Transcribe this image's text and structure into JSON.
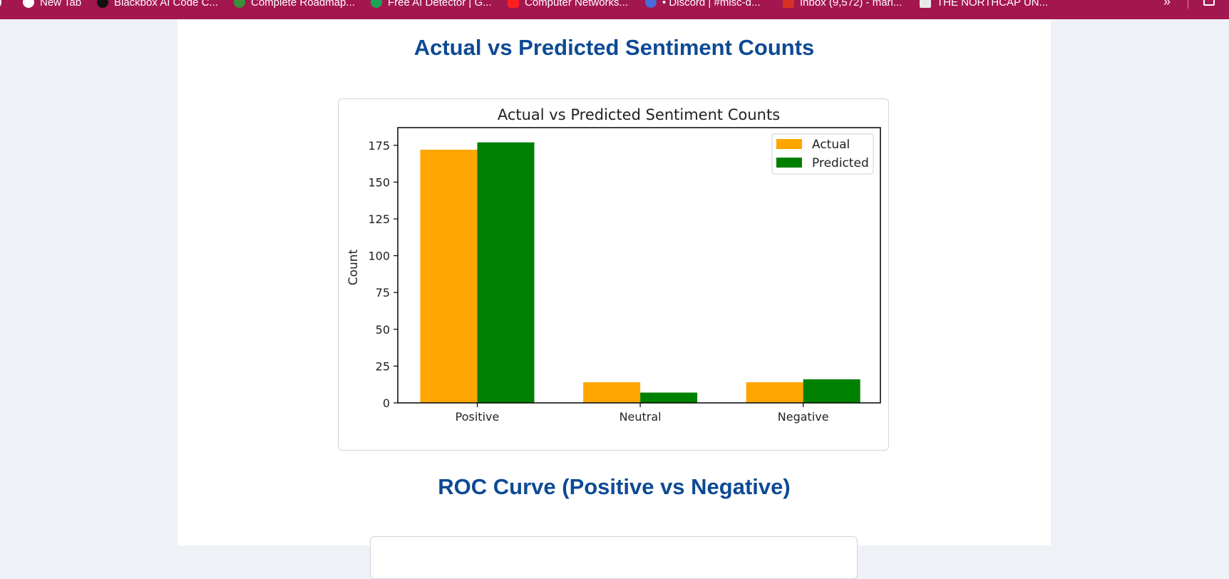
{
  "bookmarks": [
    {
      "label": "New Tab",
      "icon": "globe-icon",
      "color": "#ffffff"
    },
    {
      "label": "Blackbox AI Code C...",
      "icon": "blackbox-icon",
      "color": "#111111"
    },
    {
      "label": "Complete Roadmap...",
      "icon": "roadmap-icon",
      "color": "#3a8f3a"
    },
    {
      "label": "Free AI Detector | G...",
      "icon": "detector-icon",
      "color": "#18a558"
    },
    {
      "label": "Computer Networks...",
      "icon": "youtube-icon",
      "color": "#ff1f1f"
    },
    {
      "label": "• Discord | #misc-d...",
      "icon": "discord-icon",
      "color": "#4a6bd8"
    },
    {
      "label": "Inbox (9,572) - mari...",
      "icon": "gmail-icon",
      "color": "#d93025"
    },
    {
      "label": "THE NORTHCAP UN...",
      "icon": "northcap-icon",
      "color": "#e8e8e8"
    }
  ],
  "page": {
    "section_title": "Actual vs Predicted Sentiment Counts",
    "roc_title": "ROC Curve (Positive vs Negative)"
  },
  "chart_data": {
    "type": "bar",
    "title": "Actual vs Predicted Sentiment Counts",
    "xlabel": "",
    "ylabel": "Count",
    "categories": [
      "Positive",
      "Neutral",
      "Negative"
    ],
    "series": [
      {
        "name": "Actual",
        "values": [
          172,
          14,
          14
        ],
        "color": "#ffa500"
      },
      {
        "name": "Predicted",
        "values": [
          177,
          7,
          16
        ],
        "color": "#008000"
      }
    ],
    "ylim": [
      0,
      187
    ],
    "yticks": [
      0,
      25,
      50,
      75,
      100,
      125,
      150,
      175
    ],
    "legend": "top-right",
    "grid": false
  }
}
